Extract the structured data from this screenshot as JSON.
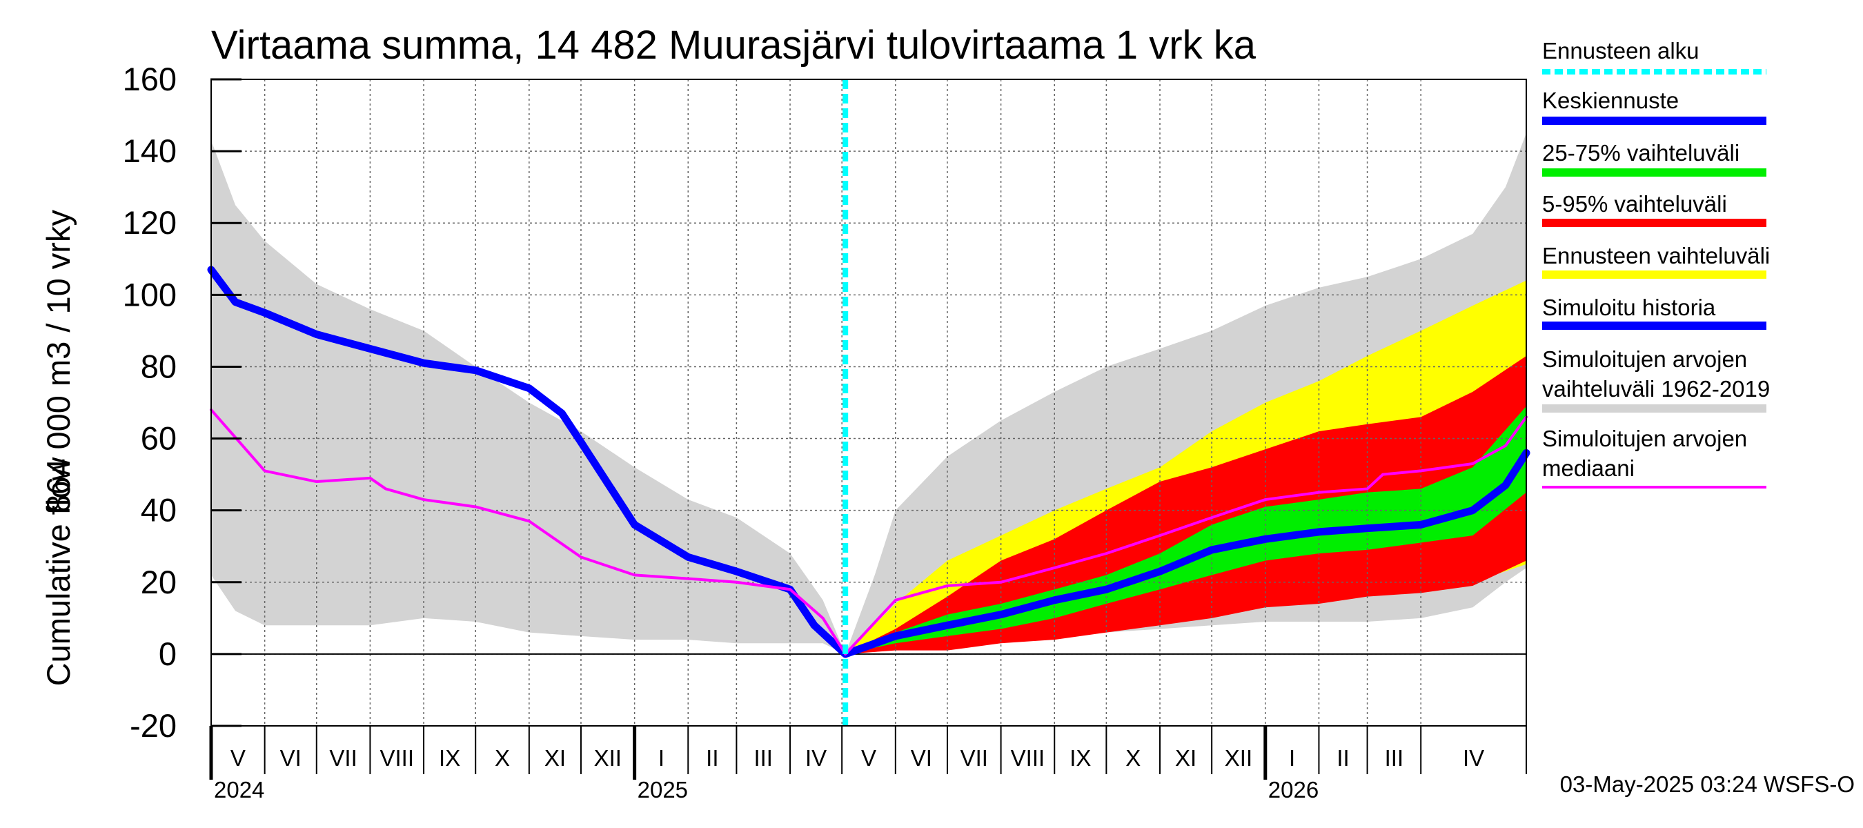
{
  "chart_data": {
    "type": "area",
    "title": "Virtaama summa, 14 482 Muurasjärvi tulovirtaama 1 vrk ka",
    "ylabel_lines": [
      "864 000 m3 / 10 vrky",
      "Cumulative flow"
    ],
    "ylim": [
      -20,
      160
    ],
    "yticks": [
      -20,
      0,
      20,
      40,
      60,
      80,
      100,
      120,
      140,
      160
    ],
    "xlim": [
      "2024-05-01",
      "2026-06-01"
    ],
    "grid": true,
    "legend_position": "right",
    "forecast_start": "2025-05-03",
    "months": [
      {
        "label": "V",
        "start": "2024-05-01"
      },
      {
        "label": "VI",
        "start": "2024-06-01"
      },
      {
        "label": "VII",
        "start": "2024-07-01"
      },
      {
        "label": "VIII",
        "start": "2024-08-01"
      },
      {
        "label": "IX",
        "start": "2024-09-01"
      },
      {
        "label": "X",
        "start": "2024-10-01"
      },
      {
        "label": "XI",
        "start": "2024-11-01"
      },
      {
        "label": "XII",
        "start": "2024-12-01"
      },
      {
        "label": "I",
        "start": "2025-01-01"
      },
      {
        "label": "II",
        "start": "2025-02-01"
      },
      {
        "label": "III",
        "start": "2025-03-01"
      },
      {
        "label": "IV",
        "start": "2025-04-01"
      },
      {
        "label": "V",
        "start": "2025-05-01"
      },
      {
        "label": "VI",
        "start": "2025-06-01"
      },
      {
        "label": "VII",
        "start": "2025-07-01"
      },
      {
        "label": "VIII",
        "start": "2025-08-01"
      },
      {
        "label": "IX",
        "start": "2025-09-01"
      },
      {
        "label": "X",
        "start": "2025-10-01"
      },
      {
        "label": "XI",
        "start": "2025-11-01"
      },
      {
        "label": "XII",
        "start": "2025-12-01"
      },
      {
        "label": "I",
        "start": "2026-01-01"
      },
      {
        "label": "II",
        "start": "2026-02-01"
      },
      {
        "label": "III",
        "start": "2026-03-01"
      },
      {
        "label": "IV",
        "start": "2026-04-01"
      }
    ],
    "years": [
      {
        "label": "2024",
        "start": "2024-05-01"
      },
      {
        "label": "2025",
        "start": "2025-01-01"
      },
      {
        "label": "2026",
        "start": "2026-01-01"
      }
    ],
    "bands": [
      {
        "name": "Simuloitujen arvojen vaihteluväli 1962-2019",
        "color": "#d3d3d3",
        "x": [
          "2024-05-01",
          "2024-05-15",
          "2024-06-01",
          "2024-07-01",
          "2024-08-01",
          "2024-09-01",
          "2024-10-01",
          "2024-11-01",
          "2024-12-01",
          "2025-01-01",
          "2025-02-01",
          "2025-03-01",
          "2025-04-01",
          "2025-04-20",
          "2025-05-03",
          "2025-05-20",
          "2025-06-01",
          "2025-07-01",
          "2025-08-01",
          "2025-09-01",
          "2025-10-01",
          "2025-11-01",
          "2025-12-01",
          "2026-01-01",
          "2026-02-01",
          "2026-03-01",
          "2026-04-01",
          "2026-05-01",
          "2026-05-20",
          "2026-06-01"
        ],
        "lower": [
          22,
          12,
          8,
          8,
          8,
          10,
          9,
          6,
          5,
          4,
          4,
          3,
          3,
          3,
          0,
          1,
          2,
          3,
          4,
          5,
          6,
          7,
          8,
          9,
          9,
          9,
          10,
          13,
          20,
          24
        ],
        "upper": [
          143,
          125,
          115,
          103,
          96,
          90,
          80,
          70,
          62,
          52,
          43,
          38,
          28,
          15,
          0,
          22,
          40,
          55,
          65,
          73,
          80,
          85,
          90,
          97,
          102,
          105,
          110,
          117,
          130,
          145
        ]
      },
      {
        "name": "Ennusteen vaihteluväli",
        "color": "#ffff00",
        "x": [
          "2025-05-03",
          "2025-06-01",
          "2025-07-01",
          "2025-08-01",
          "2025-09-01",
          "2025-10-01",
          "2025-11-01",
          "2025-12-01",
          "2026-01-01",
          "2026-02-01",
          "2026-03-01",
          "2026-04-01",
          "2026-05-01",
          "2026-06-01"
        ],
        "lower": [
          0,
          2,
          3,
          5,
          7,
          10,
          13,
          15,
          16,
          17,
          18,
          19,
          20,
          25
        ],
        "upper": [
          0,
          14,
          26,
          33,
          40,
          46,
          52,
          62,
          70,
          76,
          83,
          90,
          97,
          104
        ]
      },
      {
        "name": "5-95% vaihteluväli",
        "color": "#ff0000",
        "x": [
          "2025-05-03",
          "2025-06-01",
          "2025-07-01",
          "2025-08-01",
          "2025-09-01",
          "2025-10-01",
          "2025-11-01",
          "2025-12-01",
          "2026-01-01",
          "2026-02-01",
          "2026-03-01",
          "2026-04-01",
          "2026-05-01",
          "2026-06-01"
        ],
        "lower": [
          0,
          1,
          1,
          3,
          4,
          6,
          8,
          10,
          13,
          14,
          16,
          17,
          19,
          26
        ],
        "upper": [
          0,
          7,
          16,
          26,
          32,
          40,
          48,
          52,
          57,
          62,
          64,
          66,
          73,
          83
        ]
      },
      {
        "name": "25-75% vaihteluväli",
        "color": "#00ee00",
        "x": [
          "2025-05-03",
          "2025-06-01",
          "2025-07-01",
          "2025-08-01",
          "2025-09-01",
          "2025-10-01",
          "2025-11-01",
          "2025-12-01",
          "2026-01-01",
          "2026-02-01",
          "2026-03-01",
          "2026-04-01",
          "2026-05-01",
          "2026-06-01"
        ],
        "lower": [
          0,
          3,
          5,
          7,
          10,
          14,
          18,
          22,
          26,
          28,
          29,
          31,
          33,
          45
        ],
        "upper": [
          0,
          6,
          11,
          14,
          18,
          22,
          28,
          36,
          41,
          43,
          45,
          46,
          52,
          69
        ]
      }
    ],
    "series": [
      {
        "name": "Simuloitu historia",
        "color": "#0000ff",
        "x": [
          "2024-05-01",
          "2024-05-15",
          "2024-06-01",
          "2024-07-01",
          "2024-08-01",
          "2024-09-01",
          "2024-10-01",
          "2024-11-01",
          "2024-11-20",
          "2024-12-01",
          "2025-01-01",
          "2025-02-01",
          "2025-03-01",
          "2025-04-01",
          "2025-04-15",
          "2025-05-03"
        ],
        "y": [
          107,
          98,
          95,
          89,
          85,
          81,
          79,
          74,
          67,
          59,
          36,
          27,
          23,
          18,
          8,
          0
        ]
      },
      {
        "name": "Keskiennuste",
        "color": "#0000ff",
        "x": [
          "2025-05-03",
          "2025-06-01",
          "2025-07-01",
          "2025-08-01",
          "2025-09-01",
          "2025-10-01",
          "2025-11-01",
          "2025-12-01",
          "2026-01-01",
          "2026-02-01",
          "2026-03-01",
          "2026-04-01",
          "2026-05-01",
          "2026-05-20",
          "2026-06-01"
        ],
        "y": [
          0,
          5,
          8,
          11,
          15,
          18,
          23,
          29,
          32,
          34,
          35,
          36,
          40,
          47,
          56
        ]
      },
      {
        "name": "Simuloitujen arvojen mediaani",
        "color": "#ff00ff",
        "x": [
          "2024-05-01",
          "2024-06-01",
          "2024-07-01",
          "2024-08-01",
          "2024-08-10",
          "2024-09-01",
          "2024-10-01",
          "2024-11-01",
          "2024-12-01",
          "2025-01-01",
          "2025-02-01",
          "2025-03-01",
          "2025-04-01",
          "2025-04-20",
          "2025-05-03",
          "2025-06-01",
          "2025-07-01",
          "2025-08-01",
          "2025-09-01",
          "2025-10-01",
          "2025-11-01",
          "2025-12-01",
          "2026-01-01",
          "2026-02-01",
          "2026-03-01",
          "2026-03-10",
          "2026-04-01",
          "2026-05-01",
          "2026-05-20",
          "2026-06-01"
        ],
        "y": [
          68,
          51,
          48,
          49,
          46,
          43,
          41,
          37,
          27,
          22,
          21,
          20,
          18,
          10,
          0,
          15,
          19,
          20,
          24,
          28,
          33,
          38,
          43,
          45,
          46,
          50,
          51,
          53,
          58,
          66
        ]
      }
    ],
    "legend": [
      {
        "label": "Ennusteen alku",
        "color": "#00ffff",
        "style": "dashed"
      },
      {
        "label": "Keskiennuste",
        "color": "#0000ff",
        "style": "solid"
      },
      {
        "label": "25-75% vaihteluväli",
        "color": "#00ee00",
        "style": "solid"
      },
      {
        "label": "5-95% vaihteluväli",
        "color": "#ff0000",
        "style": "solid"
      },
      {
        "label": "Ennusteen vaihteluväli",
        "color": "#ffff00",
        "style": "solid"
      },
      {
        "label": "Simuloitu historia",
        "color": "#0000ff",
        "style": "solid"
      },
      {
        "label": "Simuloitujen arvojen\nvaihteluväli 1962-2019",
        "color": "#d3d3d3",
        "style": "solid"
      },
      {
        "label": "Simuloitujen arvojen\nmediaani",
        "color": "#ff00ff",
        "style": "solid"
      }
    ],
    "footer": "03-May-2025 03:24 WSFS-O"
  }
}
